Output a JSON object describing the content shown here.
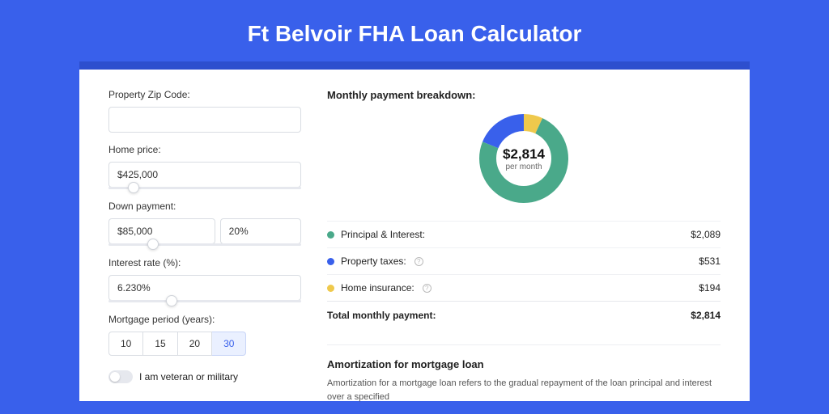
{
  "title": "Ft Belvoir FHA Loan Calculator",
  "colors": {
    "page_bg": "#3960eb",
    "card_accent": "#2d4fce",
    "principal": "#4aa98a",
    "taxes": "#3960eb",
    "insurance": "#efc94c"
  },
  "form": {
    "zip": {
      "label": "Property Zip Code:",
      "value": ""
    },
    "price": {
      "label": "Home price:",
      "value": "$425,000",
      "slider_pct": 10
    },
    "down": {
      "label": "Down payment:",
      "amount": "$85,000",
      "percent": "20%",
      "slider_pct": 20
    },
    "rate": {
      "label": "Interest rate (%):",
      "value": "6.230%",
      "slider_pct": 30
    },
    "period": {
      "label": "Mortgage period (years):",
      "options": [
        "10",
        "15",
        "20",
        "30"
      ],
      "selected": "30"
    },
    "veteran": {
      "label": "I am veteran or military",
      "on": false
    }
  },
  "breakdown": {
    "title": "Monthly payment breakdown:",
    "center_amount": "$2,814",
    "center_sub": "per month",
    "slices": {
      "principal_pct": 74.2,
      "taxes_pct": 18.9,
      "insurance_pct": 6.9
    },
    "items": [
      {
        "key": "principal",
        "label": "Principal & Interest:",
        "value": "$2,089",
        "color": "#4aa98a",
        "info": false
      },
      {
        "key": "taxes",
        "label": "Property taxes:",
        "value": "$531",
        "color": "#3960eb",
        "info": true
      },
      {
        "key": "insurance",
        "label": "Home insurance:",
        "value": "$194",
        "color": "#efc94c",
        "info": true
      }
    ],
    "total": {
      "label": "Total monthly payment:",
      "value": "$2,814"
    }
  },
  "amortization": {
    "title": "Amortization for mortgage loan",
    "text": "Amortization for a mortgage loan refers to the gradual repayment of the loan principal and interest over a specified"
  }
}
